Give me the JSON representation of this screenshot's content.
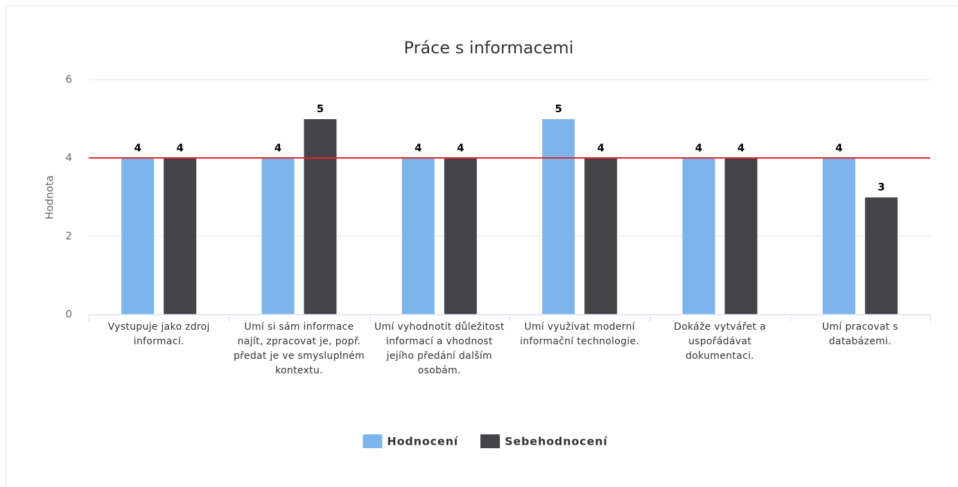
{
  "chart_data": {
    "type": "bar",
    "title": "Práce s informacemi",
    "y_axis_label": "Hodnota",
    "categories": [
      "Vystupuje jako zdroj informací.",
      "Umí si sám informace najít, zpracovat je, popř. předat je ve smysluplném kontextu.",
      "Umí vyhodnotit důležitost informací a vhodnost jejího předání dalším osobám.",
      "Umí využívat moderní informační technologie.",
      "Dokáže vytvářet a uspořádávat dokumentaci.",
      "Umí pracovat s databázemi."
    ],
    "series": [
      {
        "name": "Hodnocení",
        "color": "#7cb5ec",
        "values": [
          4,
          4,
          4,
          5,
          4,
          4
        ]
      },
      {
        "name": "Sebehodnocení",
        "color": "#434348",
        "values": [
          4,
          5,
          4,
          4,
          4,
          3
        ]
      }
    ],
    "ylim": [
      0,
      6
    ],
    "yticks": [
      0,
      2,
      4,
      6
    ],
    "grid": true,
    "plot_line": {
      "value": 4,
      "color": "#e0262d"
    },
    "legend": "bottom"
  }
}
